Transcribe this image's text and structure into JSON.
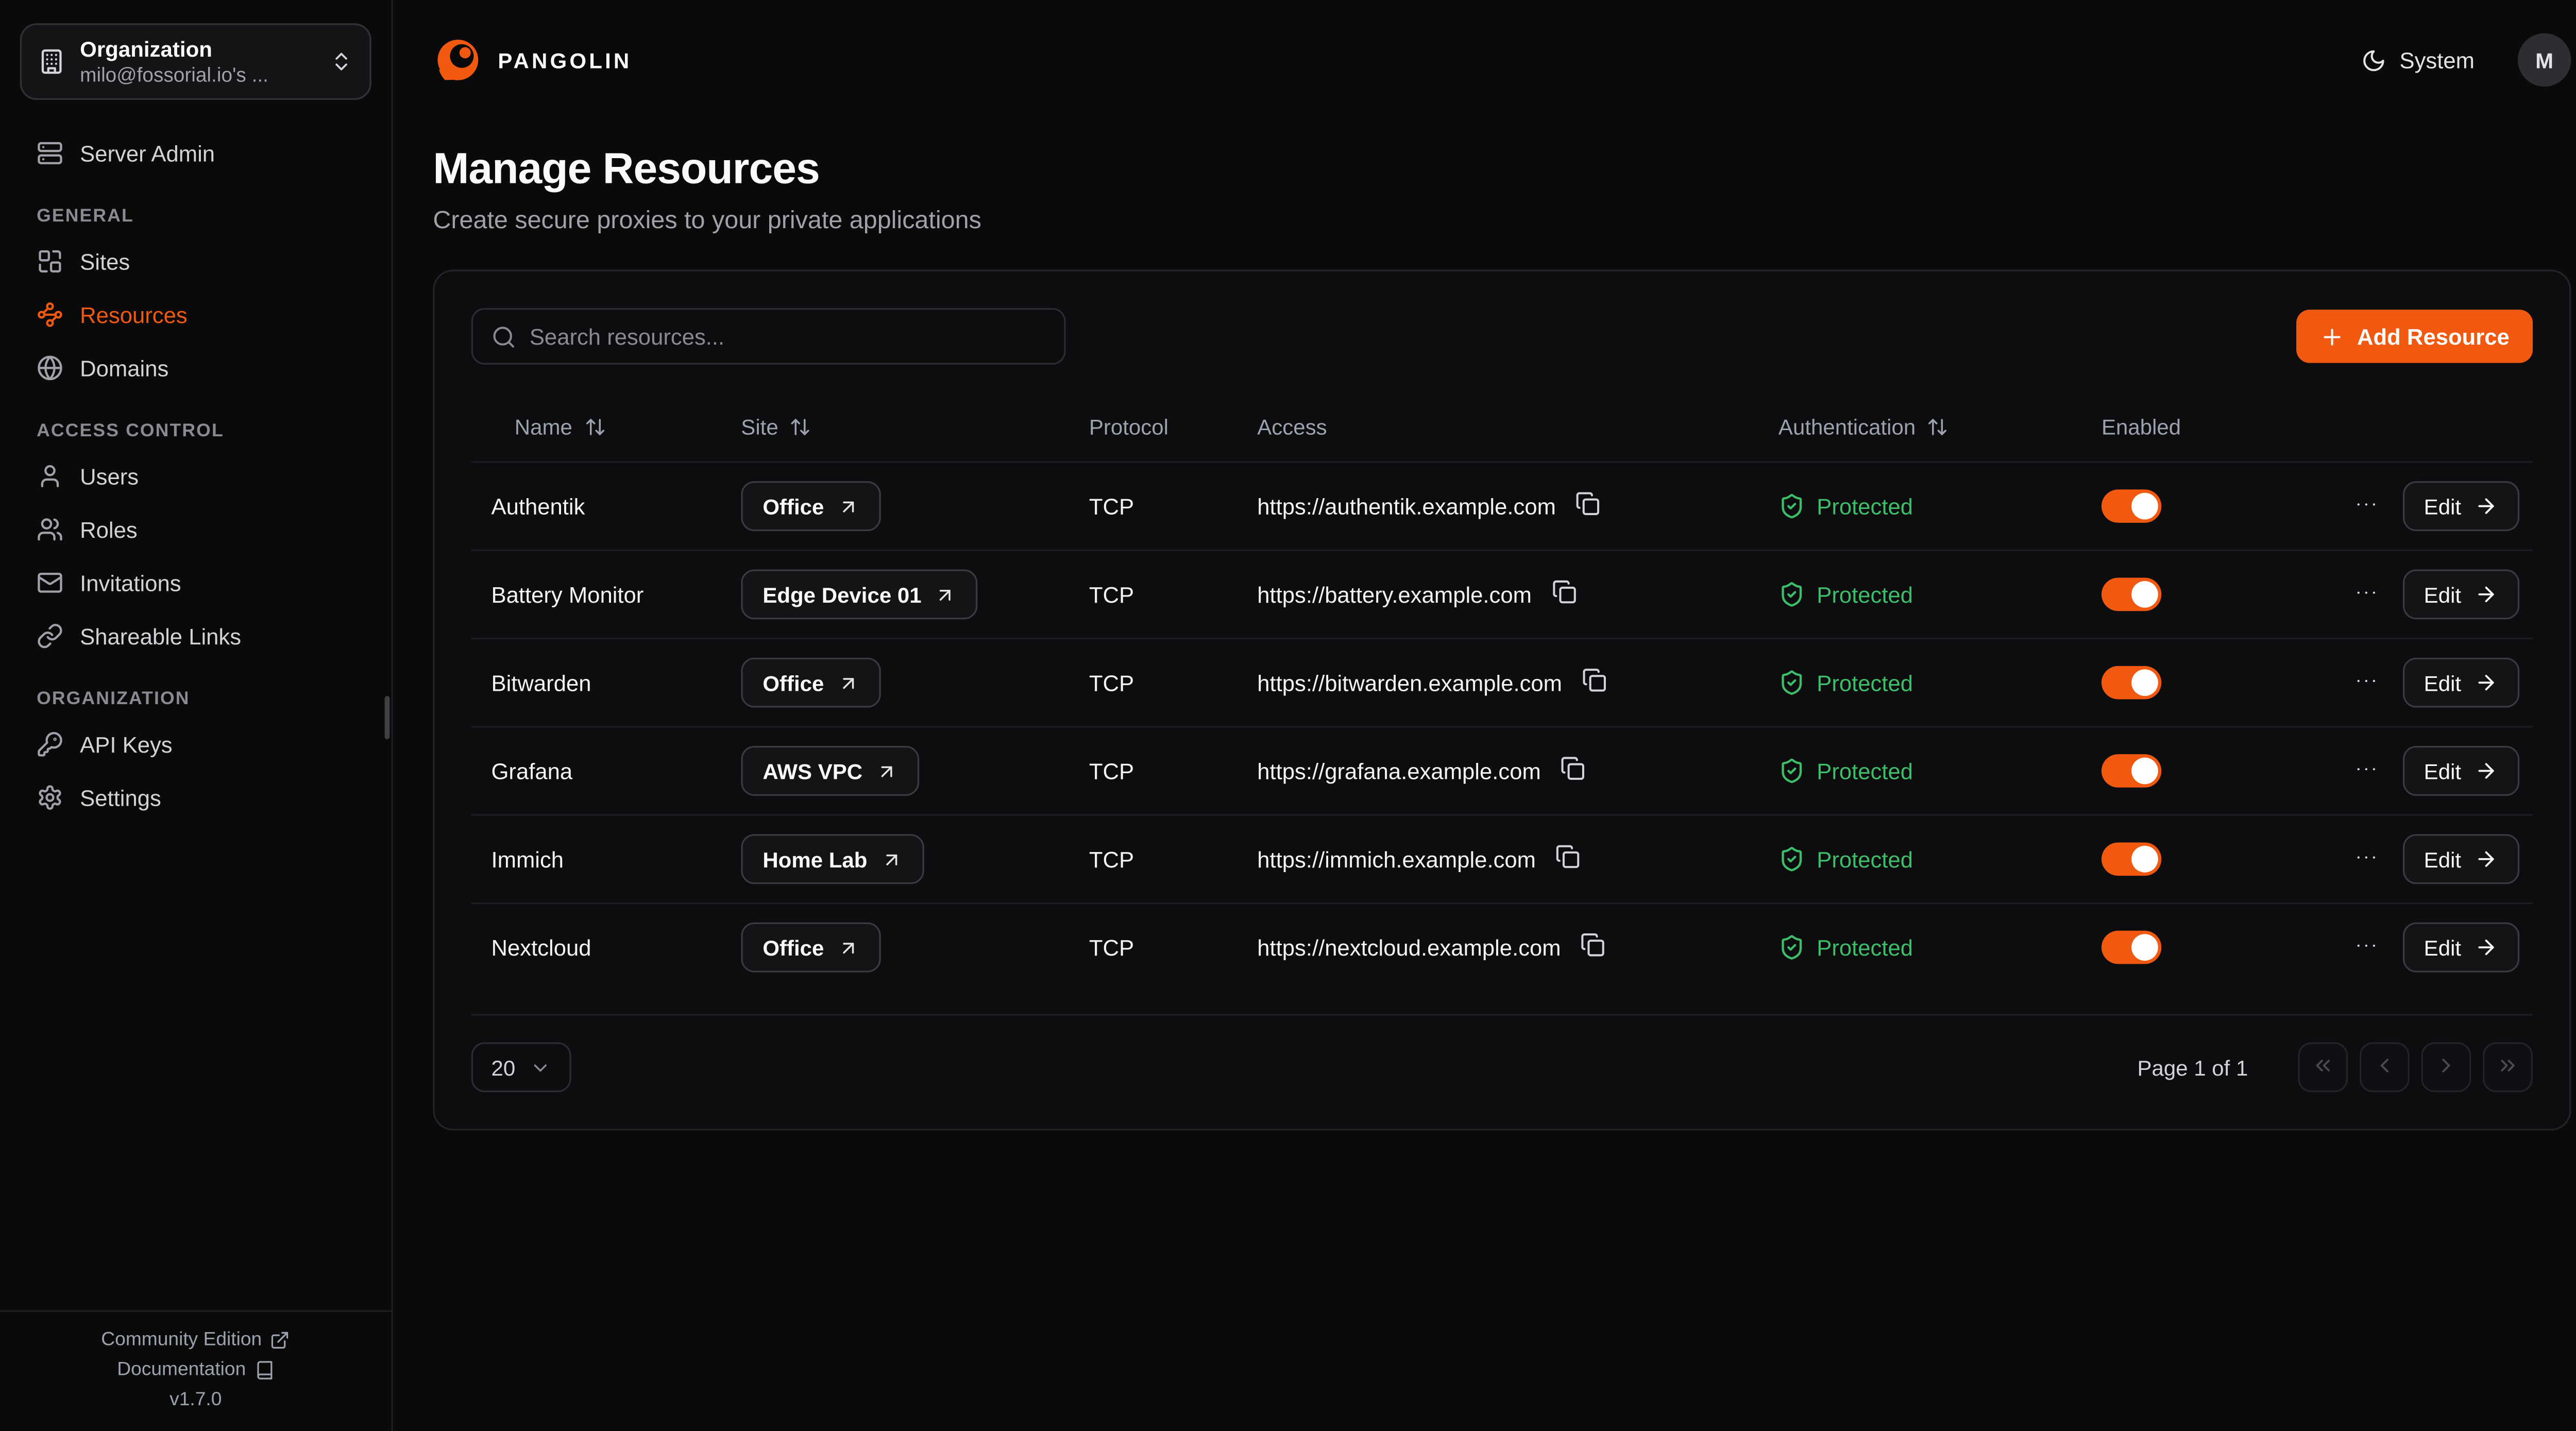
{
  "colors": {
    "accent": "#F0590F",
    "protected_green": "#3DBE69"
  },
  "brand": {
    "name": "PANGOLIN"
  },
  "header": {
    "theme_label": "System",
    "avatar_initial": "M"
  },
  "sidebar": {
    "org": {
      "title": "Organization",
      "subtitle": "milo@fossorial.io's ..."
    },
    "top_items": [
      {
        "label": "Server Admin",
        "icon": "server-icon"
      }
    ],
    "sections": [
      {
        "label": "GENERAL",
        "items": [
          {
            "label": "Sites",
            "icon": "combine-icon"
          },
          {
            "label": "Resources",
            "icon": "waypoints-icon",
            "active": true
          },
          {
            "label": "Domains",
            "icon": "globe-icon"
          }
        ]
      },
      {
        "label": "ACCESS CONTROL",
        "items": [
          {
            "label": "Users",
            "icon": "user-icon"
          },
          {
            "label": "Roles",
            "icon": "users-icon"
          },
          {
            "label": "Invitations",
            "icon": "mail-icon"
          },
          {
            "label": "Shareable Links",
            "icon": "link-icon"
          }
        ]
      },
      {
        "label": "ORGANIZATION",
        "items": [
          {
            "label": "API Keys",
            "icon": "key-icon"
          },
          {
            "label": "Settings",
            "icon": "gear-icon"
          }
        ]
      }
    ],
    "footer": {
      "community": "Community Edition",
      "documentation": "Documentation",
      "version": "v1.7.0"
    }
  },
  "page": {
    "title": "Manage Resources",
    "subtitle": "Create secure proxies to your private applications"
  },
  "toolbar": {
    "search_placeholder": "Search resources...",
    "add_resource": "Add Resource"
  },
  "table": {
    "columns": [
      {
        "label": "Name",
        "sortable": true
      },
      {
        "label": "Site",
        "sortable": true
      },
      {
        "label": "Protocol",
        "sortable": false
      },
      {
        "label": "Access",
        "sortable": false
      },
      {
        "label": "Authentication",
        "sortable": true
      },
      {
        "label": "Enabled",
        "sortable": false
      }
    ],
    "rows": [
      {
        "name": "Authentik",
        "site": "Office",
        "protocol": "TCP",
        "access": "https://authentik.example.com",
        "auth": "Protected",
        "enabled": true
      },
      {
        "name": "Battery Monitor",
        "site": "Edge Device 01",
        "protocol": "TCP",
        "access": "https://battery.example.com",
        "auth": "Protected",
        "enabled": true
      },
      {
        "name": "Bitwarden",
        "site": "Office",
        "protocol": "TCP",
        "access": "https://bitwarden.example.com",
        "auth": "Protected",
        "enabled": true
      },
      {
        "name": "Grafana",
        "site": "AWS VPC",
        "protocol": "TCP",
        "access": "https://grafana.example.com",
        "auth": "Protected",
        "enabled": true
      },
      {
        "name": "Immich",
        "site": "Home Lab",
        "protocol": "TCP",
        "access": "https://immich.example.com",
        "auth": "Protected",
        "enabled": true
      },
      {
        "name": "Nextcloud",
        "site": "Office",
        "protocol": "TCP",
        "access": "https://nextcloud.example.com",
        "auth": "Protected",
        "enabled": true
      }
    ],
    "edit_label": "Edit"
  },
  "pagination": {
    "page_size": "20",
    "info": "Page 1 of 1"
  }
}
